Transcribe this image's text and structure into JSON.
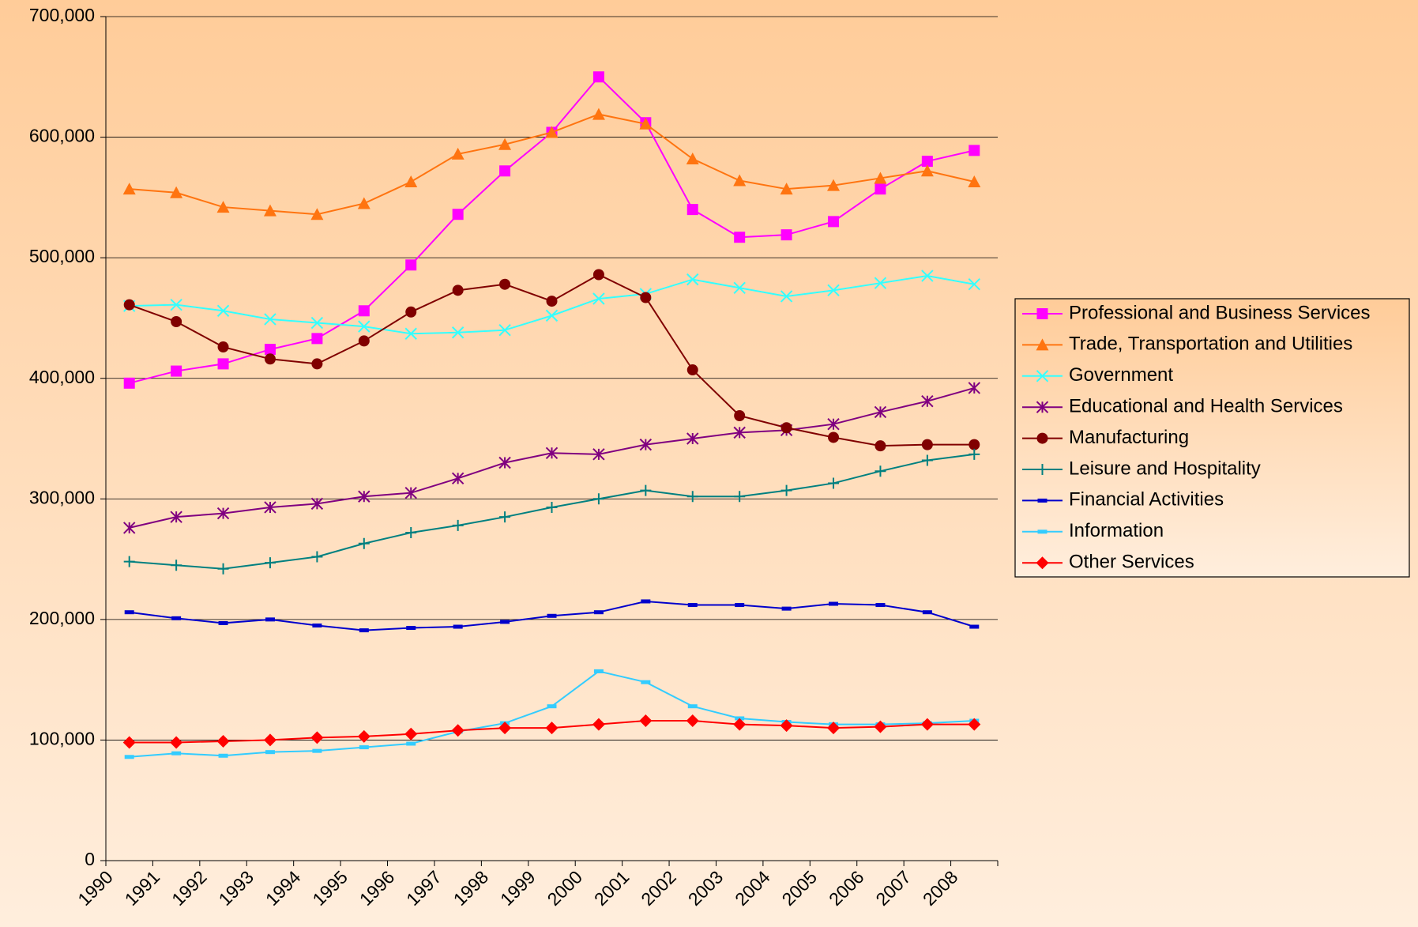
{
  "chart_data": {
    "type": "line",
    "categories": [
      "1990",
      "1991",
      "1992",
      "1993",
      "1994",
      "1995",
      "1996",
      "1997",
      "1998",
      "1999",
      "2000",
      "2001",
      "2002",
      "2003",
      "2004",
      "2005",
      "2006",
      "2007",
      "2008"
    ],
    "ylim": [
      0,
      700000
    ],
    "yticks": [
      {
        "value": 0,
        "label": "0"
      },
      {
        "value": 100000,
        "label": "100,000"
      },
      {
        "value": 200000,
        "label": "200,000"
      },
      {
        "value": 300000,
        "label": "300,000"
      },
      {
        "value": 400000,
        "label": "400,000"
      },
      {
        "value": 500000,
        "label": "500,000"
      },
      {
        "value": 600000,
        "label": "600,000"
      },
      {
        "value": 700000,
        "label": "700,000"
      }
    ],
    "grid": true,
    "legend": "right",
    "series": [
      {
        "name": "Professional and Business Services",
        "color": "#ff00ff",
        "marker": "square",
        "values": [
          396000,
          406000,
          412000,
          424000,
          433000,
          456000,
          494000,
          536000,
          572000,
          604000,
          650000,
          612000,
          540000,
          517000,
          519000,
          530000,
          557000,
          580000,
          589000
        ]
      },
      {
        "name": "Trade, Transportation and Utilities",
        "color": "#ff7410",
        "marker": "triangle",
        "values": [
          557000,
          554000,
          542000,
          539000,
          536000,
          545000,
          563000,
          586000,
          594000,
          604000,
          619000,
          611000,
          582000,
          564000,
          557000,
          560000,
          566000,
          572000,
          563000
        ]
      },
      {
        "name": "Government",
        "color": "#33ffff",
        "marker": "x",
        "values": [
          460000,
          461000,
          456000,
          449000,
          446000,
          443000,
          437000,
          438000,
          440000,
          452000,
          466000,
          470000,
          482000,
          475000,
          468000,
          473000,
          479000,
          485000,
          478000
        ]
      },
      {
        "name": "Educational and Health Services",
        "color": "#800080",
        "marker": "asterisk",
        "values": [
          276000,
          285000,
          288000,
          293000,
          296000,
          302000,
          305000,
          317000,
          330000,
          338000,
          337000,
          345000,
          350000,
          355000,
          357000,
          362000,
          372000,
          381000,
          392000
        ]
      },
      {
        "name": "Manufacturing",
        "color": "#800000",
        "marker": "circle",
        "values": [
          461000,
          447000,
          426000,
          416000,
          412000,
          431000,
          455000,
          473000,
          478000,
          464000,
          486000,
          467000,
          407000,
          369000,
          359000,
          351000,
          344000,
          345000,
          345000
        ]
      },
      {
        "name": "Leisure and Hospitality",
        "color": "#008080",
        "marker": "plus",
        "values": [
          248000,
          245000,
          242000,
          247000,
          252000,
          263000,
          272000,
          278000,
          285000,
          293000,
          300000,
          307000,
          302000,
          302000,
          307000,
          313000,
          323000,
          332000,
          337000
        ]
      },
      {
        "name": "Financial Activities",
        "color": "#0000cc",
        "marker": "dash",
        "values": [
          206000,
          201000,
          197000,
          200000,
          195000,
          191000,
          193000,
          194000,
          198000,
          203000,
          206000,
          215000,
          212000,
          212000,
          209000,
          213000,
          212000,
          206000,
          194000
        ]
      },
      {
        "name": "Information",
        "color": "#33ccff",
        "marker": "dash",
        "values": [
          86000,
          89000,
          87000,
          90000,
          91000,
          94000,
          97000,
          107000,
          114000,
          128000,
          157000,
          148000,
          128000,
          118000,
          115000,
          113000,
          113000,
          114000,
          116000
        ]
      },
      {
        "name": "Other Services",
        "color": "#ff0000",
        "marker": "diamond",
        "values": [
          98000,
          98000,
          99000,
          100000,
          102000,
          103000,
          105000,
          108000,
          110000,
          110000,
          113000,
          116000,
          116000,
          113000,
          112000,
          110000,
          111000,
          113000,
          113000
        ]
      }
    ]
  }
}
